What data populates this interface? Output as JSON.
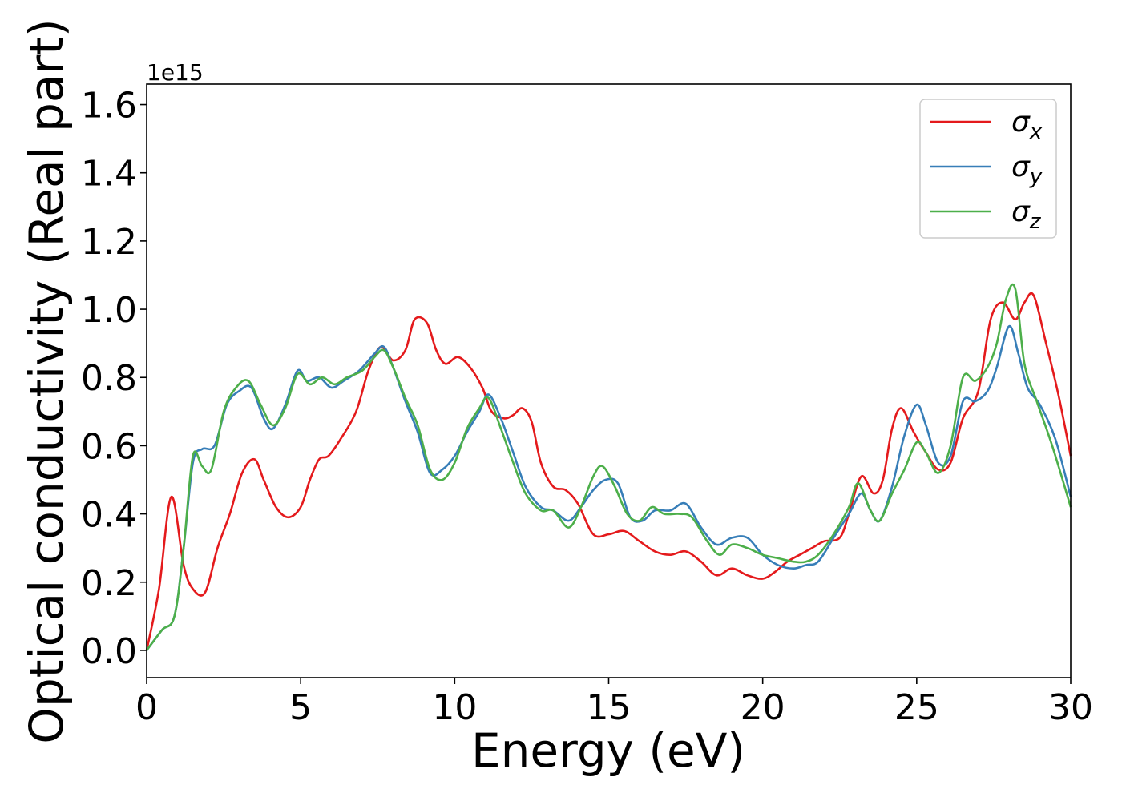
{
  "chart_data": {
    "type": "line",
    "xlabel": "Energy (eV)",
    "ylabel": "Optical conductivity (Real part)",
    "y_offset_label": "1e15",
    "xlim": [
      0,
      30
    ],
    "ylim": [
      -0.08,
      1.66
    ],
    "x_ticks": [
      0,
      5,
      10,
      15,
      20,
      25,
      30
    ],
    "x_tick_labels": [
      "0",
      "5",
      "10",
      "15",
      "20",
      "25",
      "30"
    ],
    "y_ticks": [
      0.0,
      0.2,
      0.4,
      0.6,
      0.8,
      1.0,
      1.2,
      1.4,
      1.6
    ],
    "y_tick_labels": [
      "0.0",
      "0.2",
      "0.4",
      "0.6",
      "0.8",
      "1.0",
      "1.2",
      "1.4",
      "1.6"
    ],
    "grid": false,
    "legend_position": "top-right",
    "series": [
      {
        "name": "σ_x",
        "label_main": "σ",
        "label_sub": "x",
        "color": "#e41a1c",
        "points": [
          [
            0,
            0
          ],
          [
            0.4,
            0.18
          ],
          [
            0.8,
            0.45
          ],
          [
            1.2,
            0.25
          ],
          [
            1.5,
            0.18
          ],
          [
            1.9,
            0.17
          ],
          [
            2.3,
            0.3
          ],
          [
            2.7,
            0.4
          ],
          [
            3.1,
            0.52
          ],
          [
            3.5,
            0.56
          ],
          [
            3.8,
            0.5
          ],
          [
            4.2,
            0.42
          ],
          [
            4.6,
            0.39
          ],
          [
            5.0,
            0.42
          ],
          [
            5.3,
            0.5
          ],
          [
            5.6,
            0.56
          ],
          [
            5.9,
            0.57
          ],
          [
            6.3,
            0.62
          ],
          [
            6.8,
            0.7
          ],
          [
            7.2,
            0.82
          ],
          [
            7.6,
            0.89
          ],
          [
            8.0,
            0.85
          ],
          [
            8.4,
            0.88
          ],
          [
            8.7,
            0.97
          ],
          [
            9.1,
            0.96
          ],
          [
            9.4,
            0.88
          ],
          [
            9.7,
            0.84
          ],
          [
            10.1,
            0.86
          ],
          [
            10.5,
            0.83
          ],
          [
            10.9,
            0.77
          ],
          [
            11.2,
            0.7
          ],
          [
            11.6,
            0.68
          ],
          [
            11.9,
            0.69
          ],
          [
            12.2,
            0.71
          ],
          [
            12.5,
            0.67
          ],
          [
            12.8,
            0.55
          ],
          [
            13.2,
            0.48
          ],
          [
            13.6,
            0.47
          ],
          [
            14.0,
            0.43
          ],
          [
            14.5,
            0.34
          ],
          [
            15.0,
            0.34
          ],
          [
            15.5,
            0.35
          ],
          [
            16.0,
            0.32
          ],
          [
            16.5,
            0.29
          ],
          [
            17.0,
            0.28
          ],
          [
            17.5,
            0.29
          ],
          [
            18.0,
            0.26
          ],
          [
            18.5,
            0.22
          ],
          [
            19.0,
            0.24
          ],
          [
            19.5,
            0.22
          ],
          [
            20.0,
            0.21
          ],
          [
            20.4,
            0.23
          ],
          [
            20.8,
            0.26
          ],
          [
            21.2,
            0.28
          ],
          [
            21.6,
            0.3
          ],
          [
            22.0,
            0.32
          ],
          [
            22.5,
            0.33
          ],
          [
            22.8,
            0.4
          ],
          [
            23.2,
            0.51
          ],
          [
            23.6,
            0.46
          ],
          [
            23.9,
            0.5
          ],
          [
            24.2,
            0.65
          ],
          [
            24.5,
            0.71
          ],
          [
            24.9,
            0.64
          ],
          [
            25.3,
            0.58
          ],
          [
            25.7,
            0.53
          ],
          [
            26.1,
            0.55
          ],
          [
            26.5,
            0.68
          ],
          [
            27.0,
            0.76
          ],
          [
            27.4,
            0.97
          ],
          [
            27.8,
            1.02
          ],
          [
            28.2,
            0.97
          ],
          [
            28.5,
            1.02
          ],
          [
            28.8,
            1.04
          ],
          [
            29.2,
            0.9
          ],
          [
            29.6,
            0.75
          ],
          [
            30.0,
            0.57
          ]
        ]
      },
      {
        "name": "σ_y",
        "label_main": "σ",
        "label_sub": "y",
        "color": "#377eb8",
        "points": [
          [
            0,
            0
          ],
          [
            0.5,
            0.06
          ],
          [
            0.9,
            0.1
          ],
          [
            1.2,
            0.3
          ],
          [
            1.5,
            0.55
          ],
          [
            1.8,
            0.59
          ],
          [
            2.2,
            0.6
          ],
          [
            2.6,
            0.72
          ],
          [
            3.0,
            0.76
          ],
          [
            3.4,
            0.77
          ],
          [
            3.8,
            0.68
          ],
          [
            4.1,
            0.65
          ],
          [
            4.5,
            0.72
          ],
          [
            4.9,
            0.82
          ],
          [
            5.2,
            0.79
          ],
          [
            5.6,
            0.8
          ],
          [
            6.0,
            0.77
          ],
          [
            6.4,
            0.79
          ],
          [
            6.9,
            0.82
          ],
          [
            7.4,
            0.87
          ],
          [
            7.7,
            0.89
          ],
          [
            8.0,
            0.83
          ],
          [
            8.4,
            0.73
          ],
          [
            8.8,
            0.64
          ],
          [
            9.2,
            0.52
          ],
          [
            9.6,
            0.53
          ],
          [
            10.0,
            0.57
          ],
          [
            10.4,
            0.64
          ],
          [
            10.8,
            0.7
          ],
          [
            11.1,
            0.75
          ],
          [
            11.5,
            0.68
          ],
          [
            11.9,
            0.58
          ],
          [
            12.3,
            0.48
          ],
          [
            12.8,
            0.42
          ],
          [
            13.2,
            0.41
          ],
          [
            13.7,
            0.38
          ],
          [
            14.1,
            0.42
          ],
          [
            14.5,
            0.47
          ],
          [
            14.9,
            0.5
          ],
          [
            15.3,
            0.49
          ],
          [
            15.7,
            0.39
          ],
          [
            16.1,
            0.38
          ],
          [
            16.5,
            0.41
          ],
          [
            17.0,
            0.41
          ],
          [
            17.5,
            0.43
          ],
          [
            18.0,
            0.36
          ],
          [
            18.5,
            0.31
          ],
          [
            19.0,
            0.33
          ],
          [
            19.5,
            0.33
          ],
          [
            20.0,
            0.28
          ],
          [
            20.5,
            0.25
          ],
          [
            21.0,
            0.24
          ],
          [
            21.4,
            0.25
          ],
          [
            21.8,
            0.26
          ],
          [
            22.3,
            0.33
          ],
          [
            22.8,
            0.4
          ],
          [
            23.2,
            0.46
          ],
          [
            23.5,
            0.41
          ],
          [
            23.8,
            0.38
          ],
          [
            24.2,
            0.48
          ],
          [
            24.6,
            0.63
          ],
          [
            25.0,
            0.72
          ],
          [
            25.3,
            0.66
          ],
          [
            25.7,
            0.55
          ],
          [
            26.1,
            0.57
          ],
          [
            26.5,
            0.73
          ],
          [
            26.9,
            0.73
          ],
          [
            27.3,
            0.76
          ],
          [
            27.6,
            0.83
          ],
          [
            28.0,
            0.95
          ],
          [
            28.3,
            0.87
          ],
          [
            28.6,
            0.77
          ],
          [
            29.0,
            0.72
          ],
          [
            29.5,
            0.62
          ],
          [
            30.0,
            0.45
          ]
        ]
      },
      {
        "name": "σ_z",
        "label_main": "σ",
        "label_sub": "z",
        "color": "#4daf4a",
        "points": [
          [
            0,
            0
          ],
          [
            0.5,
            0.06
          ],
          [
            0.9,
            0.1
          ],
          [
            1.2,
            0.3
          ],
          [
            1.5,
            0.57
          ],
          [
            1.8,
            0.54
          ],
          [
            2.1,
            0.53
          ],
          [
            2.5,
            0.7
          ],
          [
            2.9,
            0.77
          ],
          [
            3.3,
            0.79
          ],
          [
            3.7,
            0.72
          ],
          [
            4.1,
            0.66
          ],
          [
            4.5,
            0.71
          ],
          [
            4.9,
            0.81
          ],
          [
            5.3,
            0.78
          ],
          [
            5.7,
            0.8
          ],
          [
            6.1,
            0.78
          ],
          [
            6.5,
            0.8
          ],
          [
            7.0,
            0.82
          ],
          [
            7.4,
            0.86
          ],
          [
            7.7,
            0.88
          ],
          [
            8.0,
            0.83
          ],
          [
            8.4,
            0.74
          ],
          [
            8.8,
            0.66
          ],
          [
            9.2,
            0.53
          ],
          [
            9.6,
            0.5
          ],
          [
            10.0,
            0.55
          ],
          [
            10.4,
            0.65
          ],
          [
            10.8,
            0.71
          ],
          [
            11.1,
            0.74
          ],
          [
            11.5,
            0.65
          ],
          [
            11.9,
            0.55
          ],
          [
            12.3,
            0.46
          ],
          [
            12.8,
            0.41
          ],
          [
            13.2,
            0.41
          ],
          [
            13.7,
            0.36
          ],
          [
            14.1,
            0.42
          ],
          [
            14.5,
            0.51
          ],
          [
            14.8,
            0.54
          ],
          [
            15.2,
            0.48
          ],
          [
            15.6,
            0.4
          ],
          [
            16.0,
            0.38
          ],
          [
            16.4,
            0.42
          ],
          [
            16.8,
            0.4
          ],
          [
            17.3,
            0.4
          ],
          [
            17.7,
            0.39
          ],
          [
            18.2,
            0.32
          ],
          [
            18.6,
            0.28
          ],
          [
            19.0,
            0.31
          ],
          [
            19.5,
            0.3
          ],
          [
            20.0,
            0.28
          ],
          [
            20.5,
            0.27
          ],
          [
            21.0,
            0.26
          ],
          [
            21.4,
            0.26
          ],
          [
            21.8,
            0.28
          ],
          [
            22.3,
            0.34
          ],
          [
            22.8,
            0.42
          ],
          [
            23.1,
            0.49
          ],
          [
            23.5,
            0.41
          ],
          [
            23.8,
            0.38
          ],
          [
            24.2,
            0.46
          ],
          [
            24.6,
            0.53
          ],
          [
            25.0,
            0.61
          ],
          [
            25.3,
            0.58
          ],
          [
            25.7,
            0.52
          ],
          [
            26.1,
            0.6
          ],
          [
            26.5,
            0.8
          ],
          [
            26.9,
            0.79
          ],
          [
            27.3,
            0.83
          ],
          [
            27.6,
            0.9
          ],
          [
            27.9,
            1.03
          ],
          [
            28.2,
            1.06
          ],
          [
            28.5,
            0.84
          ],
          [
            28.9,
            0.73
          ],
          [
            29.4,
            0.6
          ],
          [
            30.0,
            0.42
          ]
        ]
      }
    ]
  }
}
